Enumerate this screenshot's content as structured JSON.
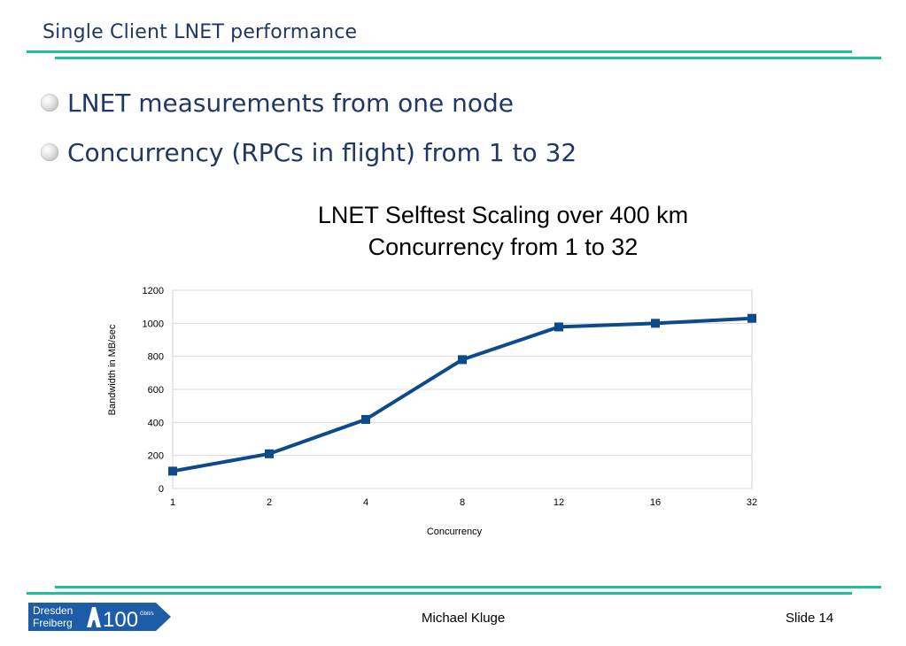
{
  "slide": {
    "title": "Single Client LNET performance",
    "bullets": [
      "LNET measurements from one node",
      "Concurrency (RPCs in flight) from 1 to 32"
    ],
    "author": "Michael Kluge",
    "slide_number": "Slide 14"
  },
  "logo": {
    "line1": "Dresden",
    "line2": "Freiberg",
    "number": "100",
    "unit": "Gbit/s"
  },
  "colors": {
    "accent_rule": "#1fbf9a",
    "series_line": "#0b4a8b",
    "title_text": "#1f3864",
    "logo_bg": "#1d5da8"
  },
  "chart_data": {
    "type": "line",
    "title_line1": "LNET Selftest Scaling over 400 km",
    "title_line2": "Concurrency from 1 to 32",
    "xlabel": "Concurrency",
    "ylabel": "Bandwidth in MB/sec",
    "categories": [
      "1",
      "2",
      "4",
      "8",
      "12",
      "16",
      "32"
    ],
    "series": [
      {
        "values": [
          105,
          210,
          418,
          780,
          978,
          1000,
          1030
        ]
      }
    ],
    "ylim": [
      0,
      1200
    ],
    "yticks": [
      0,
      200,
      400,
      600,
      800,
      1000,
      1200
    ],
    "grid": true,
    "legend": "none"
  }
}
